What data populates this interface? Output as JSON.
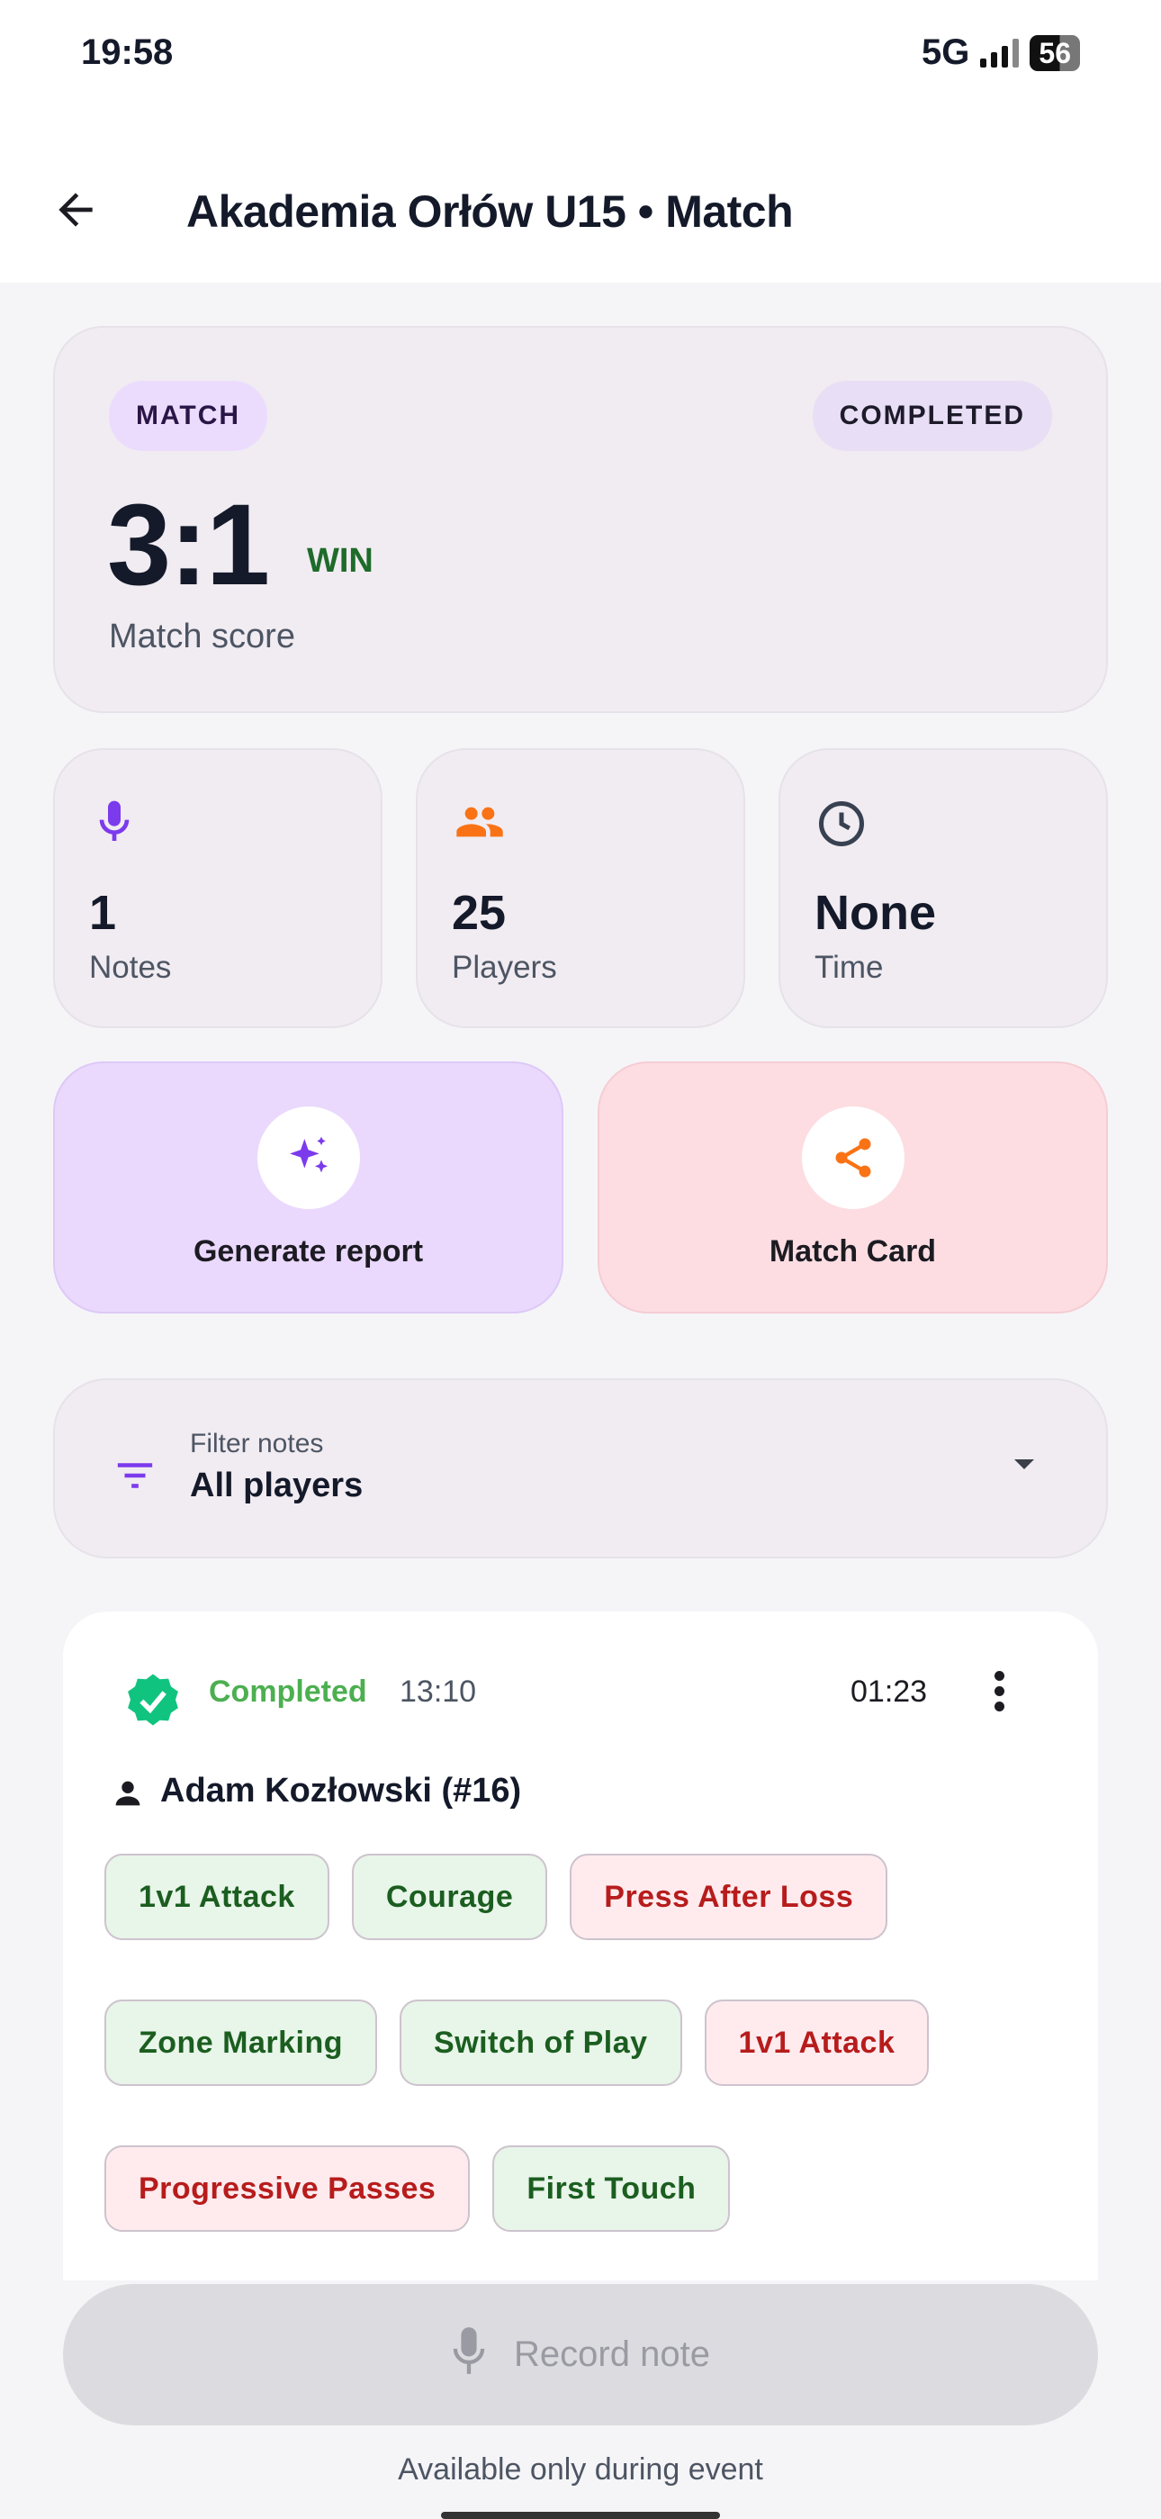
{
  "status_bar": {
    "time": "19:58",
    "network": "5G",
    "battery": "56"
  },
  "header": {
    "title": "Akademia Orłów U15 • Match",
    "back_icon": "arrow-left-icon"
  },
  "score_card": {
    "type_chip": "MATCH",
    "status_chip": "COMPLETED",
    "score": "3:1",
    "result": "WIN",
    "label": "Match score",
    "result_color": "#1e6b2a"
  },
  "stats": [
    {
      "icon": "microphone-icon",
      "value": "1",
      "label": "Notes",
      "color": "#7c3aed"
    },
    {
      "icon": "group-icon",
      "value": "25",
      "label": "Players",
      "color": "#f97316"
    },
    {
      "icon": "clock-icon",
      "value": "None",
      "label": "Time",
      "color": "#374151"
    }
  ],
  "actions": [
    {
      "label": "Generate report",
      "icon": "sparkles-icon",
      "bg": "#ead9fd"
    },
    {
      "label": "Match Card",
      "icon": "share-icon",
      "bg": "#fddde2"
    }
  ],
  "filter": {
    "label": "Filter notes",
    "value": "All players"
  },
  "note": {
    "status": "Completed",
    "time": "13:10",
    "duration": "01:23",
    "player": "Adam Kozłowski (#16)",
    "tags": [
      {
        "label": "1v1 Attack",
        "kind": "positive"
      },
      {
        "label": "Courage",
        "kind": "positive"
      },
      {
        "label": "Press After Loss",
        "kind": "negative"
      },
      {
        "label": "Zone Marking",
        "kind": "positive"
      },
      {
        "label": "Switch of Play",
        "kind": "positive"
      },
      {
        "label": "1v1 Attack",
        "kind": "negative"
      },
      {
        "label": "Progressive Passes",
        "kind": "negative"
      },
      {
        "label": "First Touch",
        "kind": "positive"
      }
    ]
  },
  "record": {
    "label": "Record note",
    "hint": "Available only during event"
  }
}
